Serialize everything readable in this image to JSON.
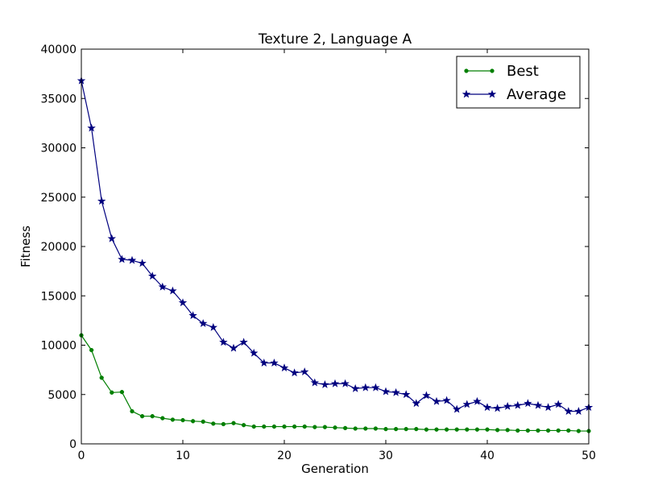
{
  "chart_data": {
    "type": "line",
    "title": "Texture 2, Language A",
    "xlabel": "Generation",
    "ylabel": "Fitness",
    "xlim": [
      0,
      50
    ],
    "ylim": [
      0,
      40000
    ],
    "xticks": [
      0,
      10,
      20,
      30,
      40,
      50
    ],
    "yticks": [
      0,
      5000,
      10000,
      15000,
      20000,
      25000,
      30000,
      35000,
      40000
    ],
    "grid": false,
    "legend_position": "top-right",
    "series": [
      {
        "name": "Best",
        "color": "#007f00",
        "marker": "dot",
        "x": [
          0,
          1,
          2,
          3,
          4,
          5,
          6,
          7,
          8,
          9,
          10,
          11,
          12,
          13,
          14,
          15,
          16,
          17,
          18,
          19,
          20,
          21,
          22,
          23,
          24,
          25,
          26,
          27,
          28,
          29,
          30,
          31,
          32,
          33,
          34,
          35,
          36,
          37,
          38,
          39,
          40,
          41,
          42,
          43,
          44,
          45,
          46,
          47,
          48,
          49,
          50
        ],
        "values": [
          11000,
          9500,
          6700,
          5200,
          5250,
          3300,
          2800,
          2800,
          2600,
          2450,
          2400,
          2300,
          2250,
          2050,
          2000,
          2100,
          1900,
          1750,
          1750,
          1750,
          1750,
          1750,
          1750,
          1700,
          1700,
          1650,
          1600,
          1550,
          1550,
          1550,
          1500,
          1500,
          1500,
          1500,
          1450,
          1450,
          1450,
          1450,
          1450,
          1450,
          1450,
          1400,
          1400,
          1350,
          1350,
          1350,
          1350,
          1350,
          1350,
          1300,
          1300
        ]
      },
      {
        "name": "Average",
        "color": "#00007f",
        "marker": "star",
        "x": [
          0,
          1,
          2,
          3,
          4,
          5,
          6,
          7,
          8,
          9,
          10,
          11,
          12,
          13,
          14,
          15,
          16,
          17,
          18,
          19,
          20,
          21,
          22,
          23,
          24,
          25,
          26,
          27,
          28,
          29,
          30,
          31,
          32,
          33,
          34,
          35,
          36,
          37,
          38,
          39,
          40,
          41,
          42,
          43,
          44,
          45,
          46,
          47,
          48,
          49,
          50
        ],
        "values": [
          36800,
          32000,
          24600,
          20800,
          18700,
          18600,
          18300,
          17000,
          15900,
          15500,
          14300,
          13000,
          12200,
          11800,
          10300,
          9700,
          10300,
          9200,
          8200,
          8200,
          7700,
          7200,
          7300,
          6200,
          6000,
          6100,
          6100,
          5600,
          5700,
          5700,
          5300,
          5200,
          5000,
          4100,
          4900,
          4300,
          4400,
          3500,
          4000,
          4300,
          3700,
          3600,
          3800,
          3900,
          4100,
          3900,
          3700,
          4000,
          3300,
          3300,
          3700
        ]
      }
    ]
  }
}
